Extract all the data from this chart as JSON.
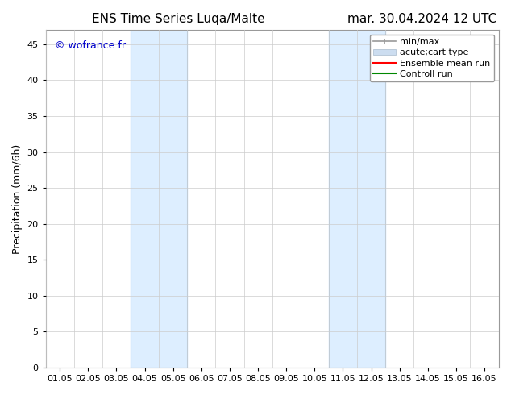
{
  "title_left": "ENS Time Series Luqa/Malte",
  "title_right": "mar. 30.04.2024 12 UTC",
  "ylabel": "Precipitation (mm/6h)",
  "watermark": "© wofrance.fr",
  "watermark_color": "#0000cc",
  "xlim_left": 0,
  "xlim_right": 16,
  "ylim_bottom": 0,
  "ylim_top": 47,
  "yticks": [
    0,
    5,
    10,
    15,
    20,
    25,
    30,
    35,
    40,
    45
  ],
  "xtick_labels": [
    "01.05",
    "02.05",
    "03.05",
    "04.05",
    "05.05",
    "06.05",
    "07.05",
    "08.05",
    "09.05",
    "10.05",
    "11.05",
    "12.05",
    "13.05",
    "14.05",
    "15.05",
    "16.05"
  ],
  "xtick_positions": [
    0.5,
    1.5,
    2.5,
    3.5,
    4.5,
    5.5,
    6.5,
    7.5,
    8.5,
    9.5,
    10.5,
    11.5,
    12.5,
    13.5,
    14.5,
    15.5
  ],
  "shaded_regions": [
    {
      "xmin": 3,
      "xmax": 5,
      "color": "#ddeeff"
    },
    {
      "xmin": 10,
      "xmax": 12,
      "color": "#ddeeff"
    }
  ],
  "shaded_borders": [
    {
      "x": 3,
      "color": "#aaccee"
    },
    {
      "x": 5,
      "color": "#aaccee"
    },
    {
      "x": 10,
      "color": "#aaccee"
    },
    {
      "x": 12,
      "color": "#aaccee"
    }
  ],
  "bg_color": "#ffffff",
  "plot_bg_color": "#ffffff",
  "legend_items": [
    {
      "label": "min/max",
      "color": "#999999",
      "lw": 1.2
    },
    {
      "label": "acute;cart type",
      "color": "#ccddf0",
      "lw": 6
    },
    {
      "label": "Ensemble mean run",
      "color": "#ff0000",
      "lw": 1.5
    },
    {
      "label": "Controll run",
      "color": "#008800",
      "lw": 1.5
    }
  ],
  "font_size_title": 11,
  "font_size_ticks": 8,
  "font_size_legend": 8,
  "font_size_ylabel": 9,
  "font_size_watermark": 9
}
